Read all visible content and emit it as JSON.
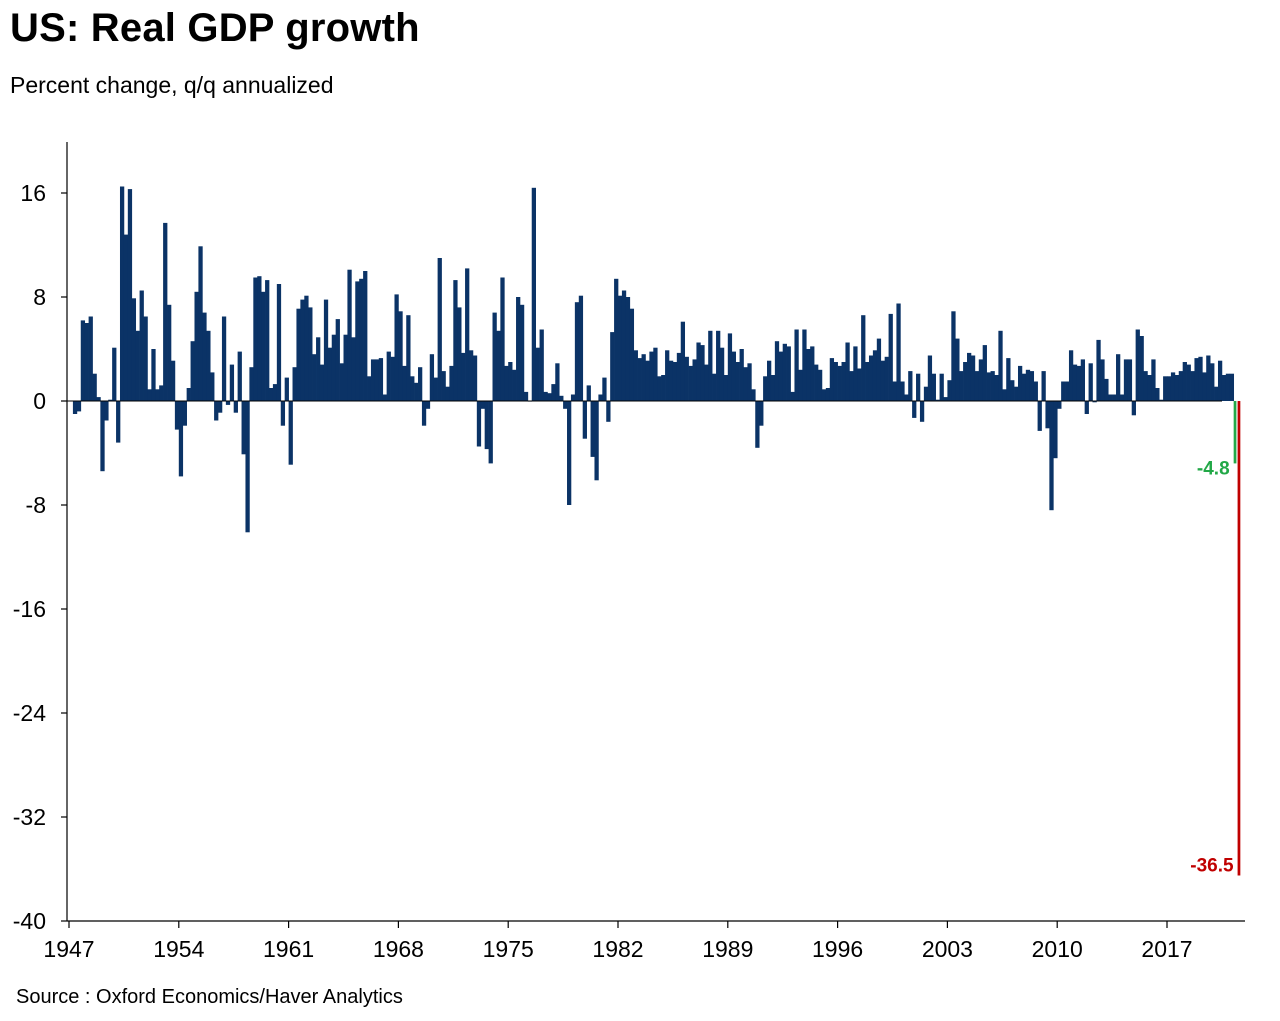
{
  "title": "US: Real GDP growth",
  "subtitle": "Percent change, q/q annualized",
  "source": "Source : Oxford Economics/Haver Analytics",
  "colors": {
    "bars": "#0b3366",
    "q1_2020": "#22a847",
    "q2_2020": "#c00000"
  },
  "chart_data": {
    "type": "bar",
    "title": "US: Real GDP growth",
    "subtitle": "Percent change, q/q annualized",
    "xlabel": "",
    "ylabel": "",
    "x_start": "1947Q2",
    "x_end": "2020Q2",
    "xlim": [
      1947,
      2021.5
    ],
    "ylim": [
      -40,
      20
    ],
    "y_ticks": [
      16,
      8,
      0,
      -8,
      -16,
      -24,
      -32,
      -40
    ],
    "x_ticks": [
      "1947",
      "1954",
      "1961",
      "1968",
      "1975",
      "1982",
      "1989",
      "1996",
      "2003",
      "2010",
      "2017"
    ],
    "grid": false,
    "legend": "none",
    "series": [
      {
        "values": [
          -1.0,
          -0.8,
          6.2,
          6.0,
          6.5,
          2.1,
          0.3,
          -5.4,
          -1.5,
          0.1,
          4.1,
          -3.2,
          16.5,
          12.8,
          16.3,
          7.9,
          5.4,
          8.5,
          6.5,
          0.9,
          4.0,
          0.9,
          1.2,
          13.7,
          7.4,
          3.1,
          -2.2,
          -5.8,
          -1.9,
          1.0,
          4.6,
          8.4,
          11.9,
          6.8,
          5.4,
          2.2,
          -1.5,
          -0.9,
          6.5,
          -0.3,
          2.8,
          -0.9,
          3.8,
          -4.1,
          -10.1,
          2.6,
          9.5,
          9.6,
          8.4,
          9.3,
          1.0,
          1.3,
          9.0,
          -1.9,
          1.8,
          -4.9,
          2.6,
          7.1,
          7.8,
          8.1,
          7.2,
          3.6,
          4.9,
          2.8,
          7.8,
          4.1,
          5.1,
          6.3,
          2.9,
          5.1,
          10.1,
          4.9,
          9.2,
          9.4,
          10.0,
          1.9,
          3.2,
          3.2,
          3.3,
          0.5,
          3.8,
          3.4,
          8.2,
          6.9,
          2.7,
          6.6,
          1.9,
          1.4,
          2.6,
          -1.9,
          -0.6,
          3.6,
          1.8,
          11.0,
          2.3,
          1.1,
          2.7,
          9.3,
          7.2,
          3.7,
          10.2,
          3.9,
          3.5,
          -3.5,
          -0.6,
          -3.7,
          -4.8,
          6.8,
          5.4,
          9.5,
          2.7,
          3.0,
          2.4,
          8.0,
          7.4,
          0.7,
          0.0,
          16.4,
          4.1,
          5.5,
          0.7,
          0.6,
          1.3,
          2.9,
          0.4,
          -0.6,
          -8.0,
          0.5,
          7.6,
          8.1,
          -2.9,
          1.2,
          -4.3,
          -6.1,
          0.5,
          1.8,
          -1.6,
          5.3,
          9.4,
          8.1,
          8.5,
          8.0,
          7.1,
          3.9,
          3.3,
          3.6,
          3.1,
          3.8,
          4.1,
          1.9,
          2.0,
          3.9,
          3.1,
          3.0,
          3.7,
          6.1,
          3.4,
          2.7,
          3.2,
          4.5,
          4.3,
          2.8,
          5.4,
          2.1,
          5.4,
          4.1,
          2.0,
          5.2,
          3.8,
          3.0,
          4.0,
          2.6,
          2.9,
          0.9,
          -3.6,
          -1.9,
          1.9,
          3.1,
          2.0,
          4.6,
          3.8,
          4.4,
          4.2,
          0.7,
          5.5,
          2.4,
          5.5,
          4.0,
          4.2,
          2.8,
          2.4,
          0.9,
          1.0,
          3.3,
          3.0,
          2.7,
          3.0,
          4.5,
          2.3,
          4.2,
          2.5,
          6.6,
          3.0,
          3.5,
          3.9,
          4.8,
          3.1,
          3.4,
          6.7,
          1.5,
          7.5,
          1.5,
          0.5,
          2.3,
          -1.3,
          2.1,
          -1.6,
          1.1,
          3.5,
          2.1,
          0.1,
          2.1,
          0.3,
          1.6,
          6.9,
          4.8,
          2.3,
          3.0,
          3.7,
          3.5,
          2.3,
          3.2,
          4.3,
          2.2,
          2.3,
          2.0,
          5.4,
          0.9,
          3.3,
          1.6,
          1.1,
          2.7,
          2.1,
          2.4,
          2.3,
          1.5,
          -2.3,
          2.3,
          -2.1,
          -8.4,
          -4.4,
          -0.6,
          1.5,
          1.5,
          3.9,
          2.8,
          2.7,
          3.2,
          -1.0,
          2.9,
          -0.1,
          4.7,
          3.2,
          1.7,
          0.5,
          0.5,
          3.6,
          0.5,
          3.2,
          3.2,
          -1.1,
          5.5,
          5.0,
          2.3,
          2.0,
          3.2,
          1.0,
          0.1,
          1.9,
          1.9,
          2.2,
          2.0,
          2.3,
          3.0,
          2.8,
          2.3,
          3.3,
          3.4,
          2.2,
          3.5,
          2.9,
          1.1,
          3.1,
          2.0,
          2.1,
          2.1,
          -4.8,
          -36.5
        ]
      }
    ],
    "data_labels": [
      {
        "quarter": "2020Q1",
        "value": -4.8,
        "text": "-4.8"
      },
      {
        "quarter": "2020Q2",
        "value": -36.5,
        "text": "-36.5"
      }
    ]
  }
}
